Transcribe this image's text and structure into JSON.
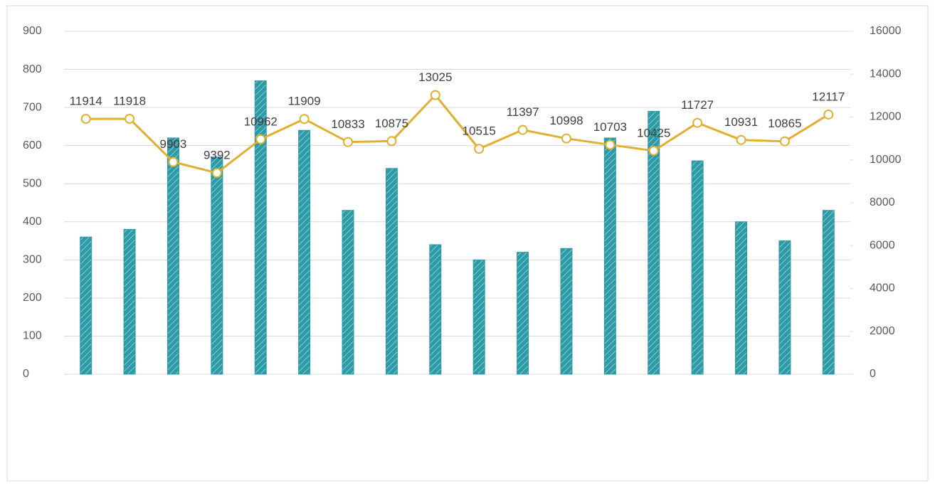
{
  "chart_data": {
    "type": "bar-line",
    "categories": [
      null,
      null,
      null,
      null,
      null,
      null,
      null,
      null,
      null,
      null,
      null,
      null,
      null,
      null,
      null,
      null,
      null,
      null
    ],
    "series": [
      {
        "type": "bar",
        "color": "#2e9aa6",
        "values": [
          360,
          380,
          620,
          570,
          770,
          640,
          430,
          540,
          340,
          300,
          320,
          330,
          620,
          690,
          560,
          400,
          350,
          430
        ]
      },
      {
        "type": "line",
        "axis": "y2",
        "color": "#e0b030",
        "values": [
          11914,
          11918,
          9903,
          9392,
          10962,
          11909,
          10833,
          10875,
          13025,
          10515,
          11397,
          10998,
          10703,
          10425,
          11727,
          10931,
          10865,
          12117
        ]
      }
    ],
    "ylim": [
      0,
      900
    ],
    "yticks": [
      0,
      100,
      200,
      300,
      400,
      500,
      600,
      700,
      800,
      900
    ],
    "y2lim": [
      0,
      16000
    ],
    "y2ticks": [
      0,
      2000,
      4000,
      6000,
      8000,
      10000,
      12000,
      14000,
      16000
    ],
    "grid": true
  }
}
